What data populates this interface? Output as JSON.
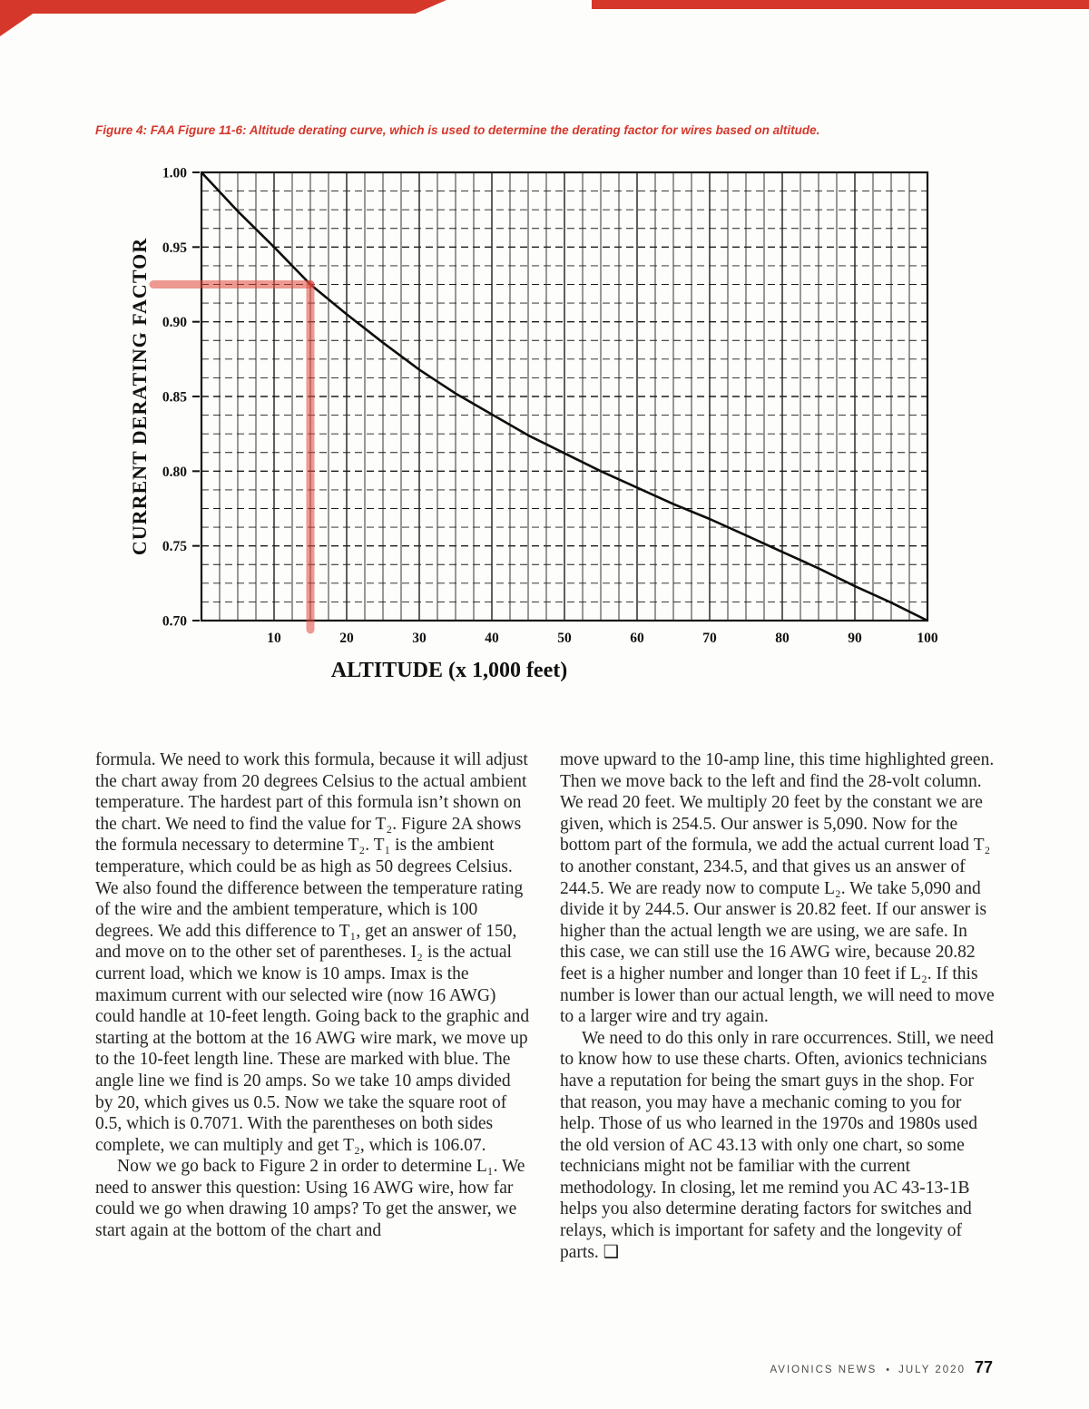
{
  "theme": {
    "accent_red": "#d5372b",
    "highlight_red": "#e0483c"
  },
  "figure": {
    "caption": "Figure 4: FAA Figure 11-6: Altitude derating curve, which is used to determine the derating factor for wires based on altitude."
  },
  "chart_data": {
    "type": "line",
    "title": "",
    "xlabel": "ALTITUDE (x 1,000 feet)",
    "ylabel": "CURRENT DERATING FACTOR",
    "xlim": [
      0,
      100
    ],
    "ylim": [
      0.7,
      1.0
    ],
    "x_ticks": [
      10,
      20,
      30,
      40,
      50,
      60,
      70,
      80,
      90,
      100
    ],
    "y_ticks": [
      1.0,
      0.95,
      0.9,
      0.85,
      0.8,
      0.75,
      0.7
    ],
    "y_tick_labels": [
      "1.00",
      "0.95",
      "0.90",
      "0.85",
      "0.80",
      "0.75",
      "0.70"
    ],
    "x_minor_step": 2.5,
    "y_minor_step": 0.0125,
    "grid": {
      "vertical": "solid",
      "horizontal": "dashed"
    },
    "legend": "none",
    "series": [
      {
        "name": "altitude-derating-curve",
        "x": [
          0,
          5,
          10,
          15,
          20,
          25,
          30,
          35,
          40,
          45,
          50,
          55,
          60,
          65,
          70,
          75,
          80,
          85,
          90,
          95,
          100
        ],
        "y": [
          1.0,
          0.974,
          0.95,
          0.925,
          0.905,
          0.886,
          0.868,
          0.852,
          0.838,
          0.824,
          0.812,
          0.8,
          0.789,
          0.778,
          0.768,
          0.757,
          0.746,
          0.735,
          0.723,
          0.712,
          0.7
        ]
      }
    ],
    "annotation": {
      "type": "crosshair-highlight",
      "x": 15,
      "y": 0.925,
      "color": "#e0483c"
    }
  },
  "article": {
    "left_paragraphs": [
      "formula. We need to work this formula, because it will adjust the chart away from 20 degrees Celsius to the actual ambient temperature. The hardest part of this formula isn’t shown on the chart. We need to find the value for T₂. Figure 2A shows the formula necessary to determine T₂. T₁ is the ambient temperature, which could be as high as 50 degrees Celsius. We also found the difference between the temperature rating of the wire and the ambient temperature, which is 100 degrees. We add this difference to T₁, get an answer of 150, and move on to the other set of parentheses. I₂ is the actual current load, which we know is 10 amps. Imax is the maximum current with our selected wire (now 16 AWG) could handle at 10-feet length. Going back to the graphic and starting at the bottom at the 16 AWG wire mark, we move up to the 10-feet length line. These are marked with blue. The angle line we find is 20 amps. So we take 10 amps divided by 20, which gives us 0.5. Now we take the square root of 0.5, which is 0.7071. With the parentheses on both sides complete, we can multiply and get T₂, which is 106.07.",
      "Now we go back to Figure 2 in order to determine L₁. We need to answer this question: Using 16 AWG wire, how far could we go when drawing 10 amps? To get the answer, we start again at the bottom of the chart and"
    ],
    "right_paragraphs": [
      "move upward to the 10-amp line, this time highlighted green. Then we move back to the left and find the 28-volt column. We read 20 feet. We multiply 20 feet by the constant we are given, which is 254.5. Our answer is 5,090. Now for the bottom part of the formula, we add the actual current load T₂ to another constant, 234.5, and that gives us an answer of 244.5. We are ready now to compute L₂. We take 5,090 and divide it by 244.5. Our answer is 20.82 feet. If our answer is higher than the actual length we are using, we are safe. In this case, we can still use the 16 AWG wire, because 20.82 feet is a higher number and longer than 10 feet if L₂. If this number is lower than our actual length, we will need to move to a larger wire and try again.",
      "We need to do this only in rare occurrences. Still, we need to know how to use these charts. Often, avionics technicians have a reputation for being the smart guys in the shop. For that reason, you may have a mechanic coming to you for help. Those of us who learned in the 1970s and 1980s used the old version of AC 43.13 with only one chart, so some technicians might not be familiar with the current methodology. In closing, let me remind you AC 43-13-1B helps you also determine derating factors for switches and relays, which is important for safety and the longevity of parts. ❑"
    ]
  },
  "footer": {
    "journal": "AVIONICS NEWS",
    "bullet": "•",
    "issue": "JULY 2020",
    "page_number": "77"
  }
}
